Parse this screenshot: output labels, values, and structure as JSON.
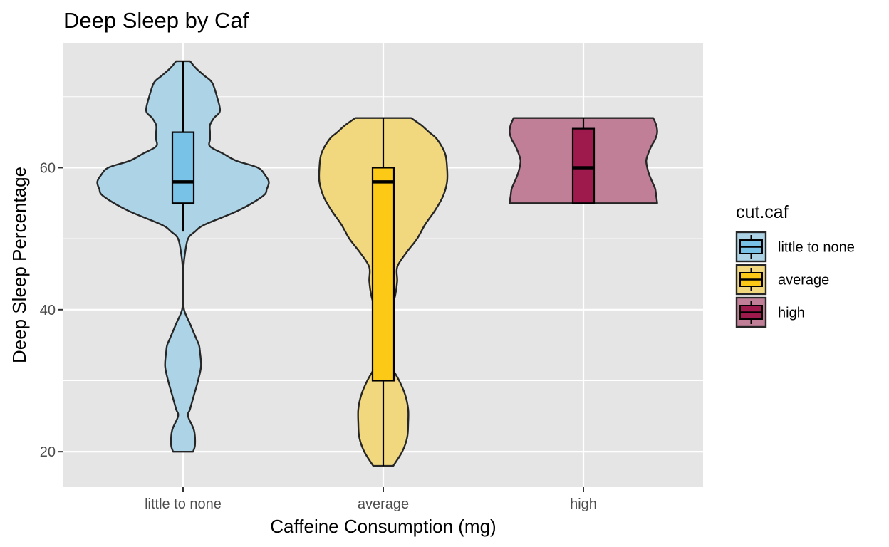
{
  "chart_data": {
    "type": "violin",
    "title": "Deep Sleep by Caf",
    "xlabel": "Caffeine Consumption (mg)",
    "ylabel": "Deep Sleep Percentage",
    "categories": [
      "little to none",
      "average",
      "high"
    ],
    "ylim": [
      15,
      77.5
    ],
    "yticks": [
      20,
      40,
      60
    ],
    "yticks_minor": [
      30,
      50,
      70
    ],
    "grid": true,
    "legend": {
      "title": "cut.caf",
      "position": "right",
      "entries": [
        "little to none",
        "average",
        "high"
      ]
    },
    "colors": {
      "panel_background": "#e5e5e5",
      "gridline": "#ffffff",
      "outline": "#262626",
      "little to none": {
        "violin": "#acd4e6",
        "box": "#79c2e7"
      },
      "average": {
        "violin": "#f1d77e",
        "box": "#fcc917"
      },
      "high": {
        "violin": "#c07f97",
        "box": "#9e1a4c"
      }
    },
    "series": [
      {
        "category": "little to none",
        "box": {
          "min": 51,
          "q1": 55,
          "median": 58,
          "q3": 65,
          "max": 75
        },
        "violin": {
          "y": [
            20,
            21,
            23,
            25,
            26,
            28,
            30,
            32,
            34,
            35,
            36,
            38,
            40,
            42,
            44,
            46,
            48,
            50,
            51,
            52,
            54,
            56,
            57,
            58,
            59,
            60,
            61,
            62,
            63,
            64,
            65,
            66,
            67,
            68,
            70,
            72,
            73,
            74,
            75
          ],
          "width": [
            0.1,
            0.12,
            0.11,
            0.05,
            0.07,
            0.11,
            0.15,
            0.18,
            0.17,
            0.16,
            0.13,
            0.07,
            0.01,
            0.005,
            0.003,
            0.004,
            0.02,
            0.05,
            0.12,
            0.22,
            0.56,
            0.8,
            0.84,
            0.86,
            0.82,
            0.75,
            0.53,
            0.4,
            0.27,
            0.27,
            0.27,
            0.27,
            0.31,
            0.37,
            0.34,
            0.29,
            0.21,
            0.13,
            0.07
          ]
        }
      },
      {
        "category": "average",
        "box": {
          "min": 18,
          "q1": 30,
          "median": 58,
          "q3": 60,
          "max": 67
        },
        "violin": {
          "y": [
            18,
            20,
            22,
            24,
            26,
            28,
            30,
            32,
            34,
            36,
            38,
            40,
            42,
            44,
            46,
            48,
            50,
            52,
            54,
            56,
            58,
            60,
            62,
            64,
            65,
            66,
            67
          ],
          "width": [
            0.1,
            0.19,
            0.24,
            0.25,
            0.25,
            0.22,
            0.16,
            0.08,
            0.02,
            0.02,
            0.05,
            0.08,
            0.12,
            0.14,
            0.14,
            0.23,
            0.34,
            0.42,
            0.52,
            0.6,
            0.64,
            0.64,
            0.62,
            0.54,
            0.46,
            0.38,
            0.28
          ]
        }
      },
      {
        "category": "high",
        "box": {
          "min": 55,
          "q1": 55,
          "median": 60,
          "q3": 65.5,
          "max": 67
        },
        "violin": {
          "y": [
            55,
            56,
            57,
            58,
            59,
            60,
            61,
            62,
            63,
            64,
            65,
            66,
            67
          ],
          "width": [
            0.74,
            0.73,
            0.72,
            0.69,
            0.66,
            0.64,
            0.63,
            0.65,
            0.68,
            0.72,
            0.74,
            0.73,
            0.7
          ]
        }
      }
    ]
  }
}
